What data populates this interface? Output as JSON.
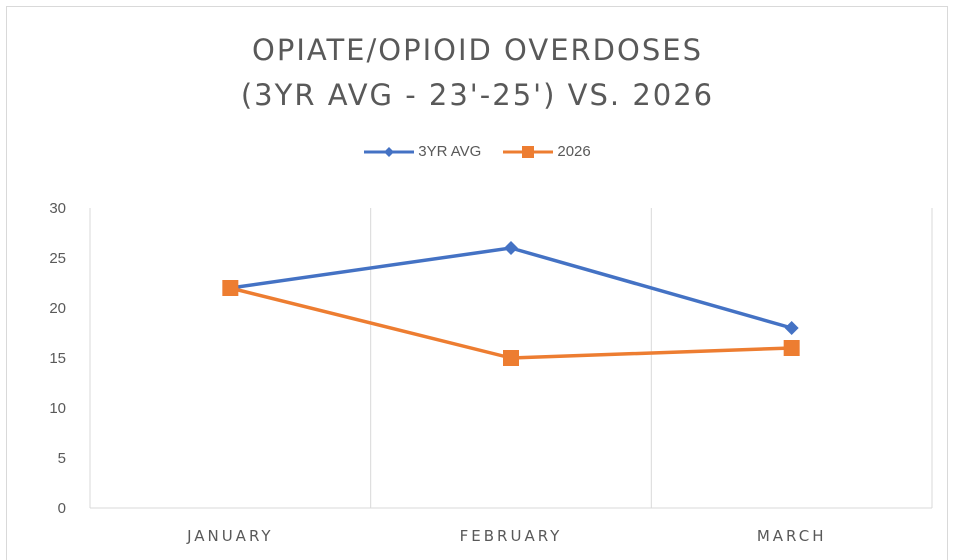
{
  "chart_data": {
    "type": "line",
    "title": "OPIATE/OPIOID OVERDOSES",
    "subtitle": "(3YR AVG - 23'-25') VS. 2026",
    "categories": [
      "JANUARY",
      "FEBRUARY",
      "MARCH"
    ],
    "series": [
      {
        "name": "3YR AVG",
        "values": [
          22,
          26,
          18
        ],
        "color": "#4472C4",
        "marker": "diamond"
      },
      {
        "name": "2026",
        "values": [
          22,
          15,
          16
        ],
        "color": "#ED7D31",
        "marker": "square"
      }
    ],
    "ylim": [
      0,
      30
    ],
    "yticks": [
      "0",
      "5",
      "10",
      "15",
      "20",
      "25",
      "30"
    ],
    "xlabel": "",
    "ylabel": "",
    "grid": "vertical category separators",
    "legend": "top-center"
  }
}
